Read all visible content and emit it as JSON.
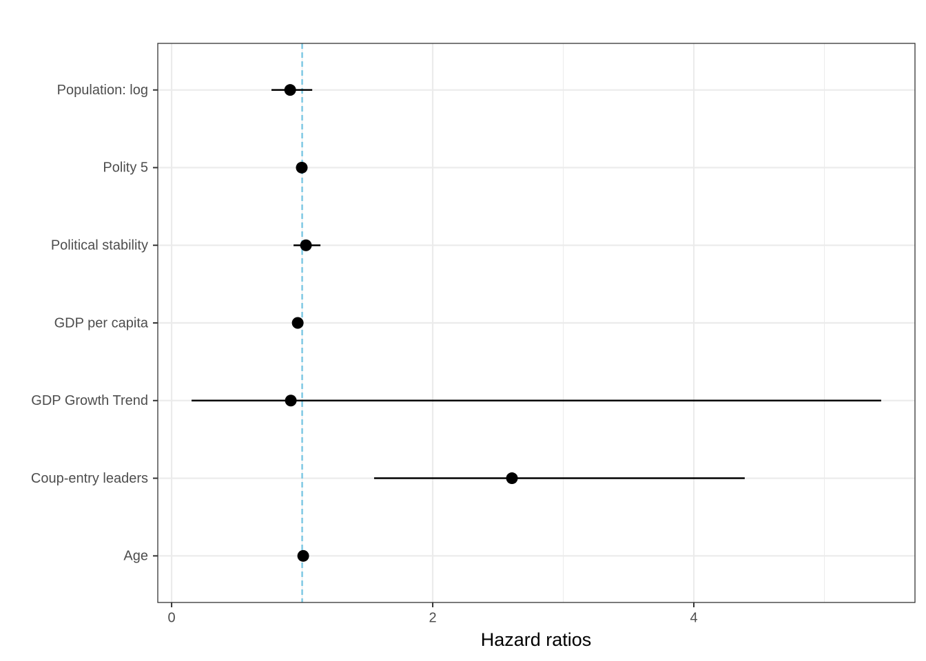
{
  "chart_data": {
    "type": "forest",
    "x_axis_label": "Hazard ratios",
    "categories": [
      "Population: log",
      "Polity 5",
      "Political stability",
      "GDP per capita",
      "GDP Growth Trend",
      "Coup-entry leaders",
      "Age"
    ],
    "values": [
      0.908,
      0.997,
      1.029,
      0.966,
      0.913,
      2.607,
      1.008
    ],
    "lower": [
      0.765,
      0.98,
      0.934,
      0.94,
      0.153,
      1.551,
      0.99
    ],
    "upper": [
      1.077,
      1.02,
      1.14,
      0.99,
      5.435,
      4.39,
      1.025
    ],
    "color": "#000000",
    "reference_line": 1,
    "reference_color": "#7ec8e3",
    "xlim": [
      -0.106,
      5.694
    ],
    "xticks": [
      0,
      2,
      4
    ],
    "minor_xticks": [
      1,
      3,
      5
    ],
    "grid": true
  }
}
